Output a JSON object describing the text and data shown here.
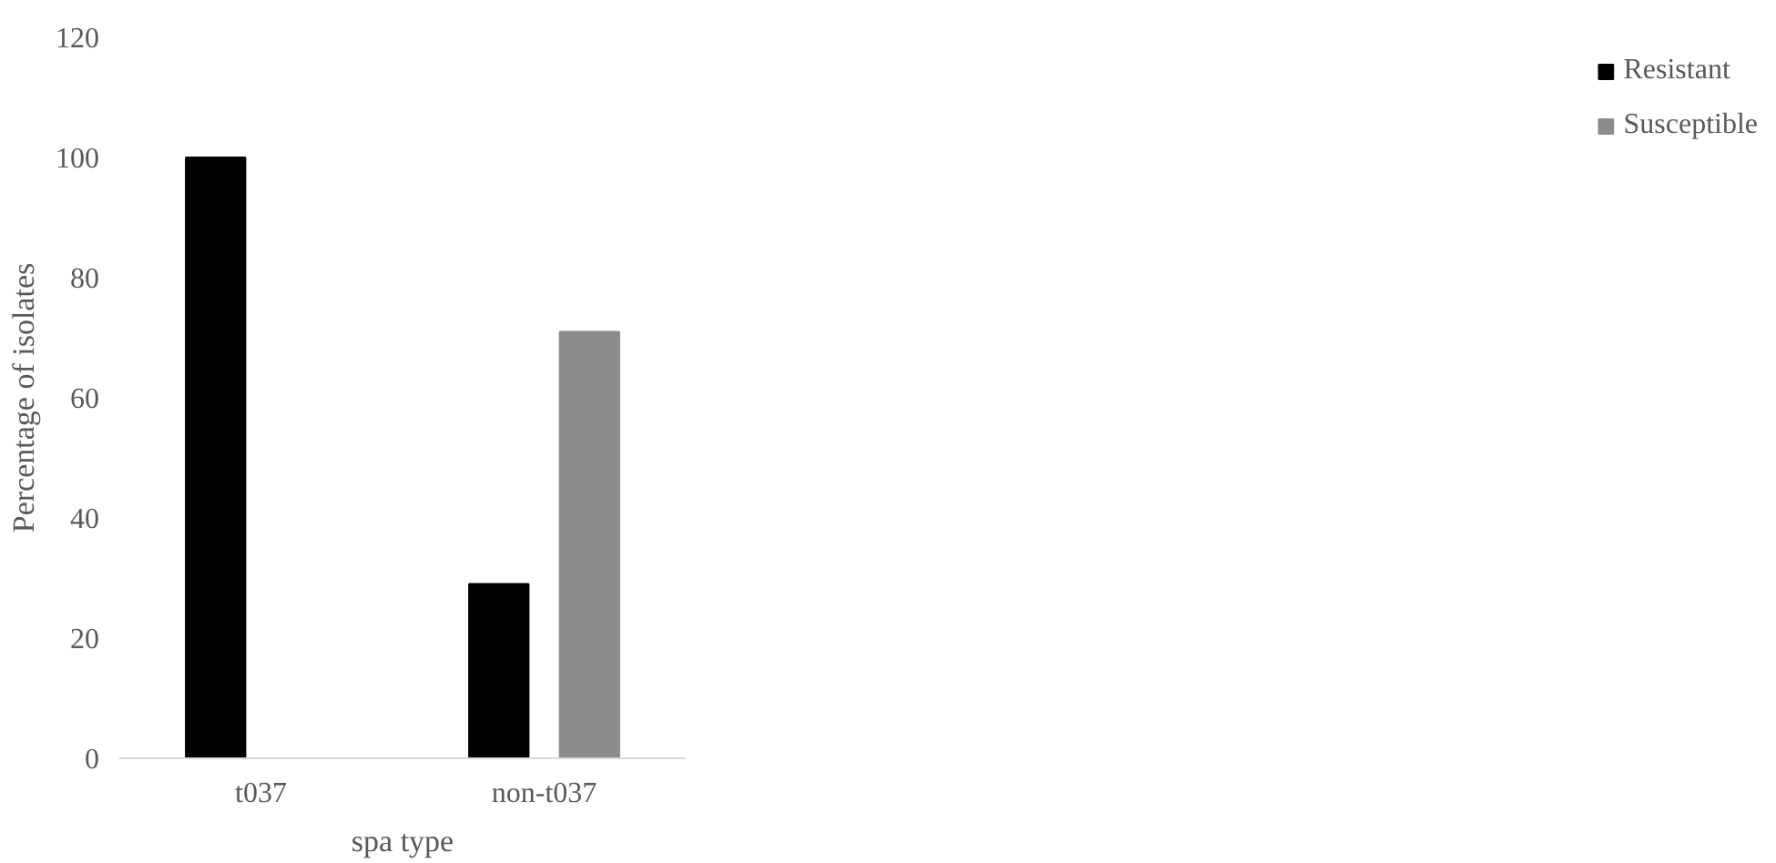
{
  "chart_data": {
    "type": "bar",
    "xlabel": "spa type",
    "ylabel": "Percentage of isolates",
    "categories": [
      "t037",
      "non-t037"
    ],
    "series": [
      {
        "name": "Resistant",
        "color": "#000000",
        "values": [
          100,
          29
        ]
      },
      {
        "name": "Susceptible",
        "color": "#8c8c8c",
        "values": [
          0,
          71
        ]
      }
    ],
    "ylim": [
      0,
      120
    ],
    "yticks": [
      0,
      20,
      40,
      60,
      80,
      100,
      120
    ],
    "grid": false,
    "legend": "right"
  }
}
